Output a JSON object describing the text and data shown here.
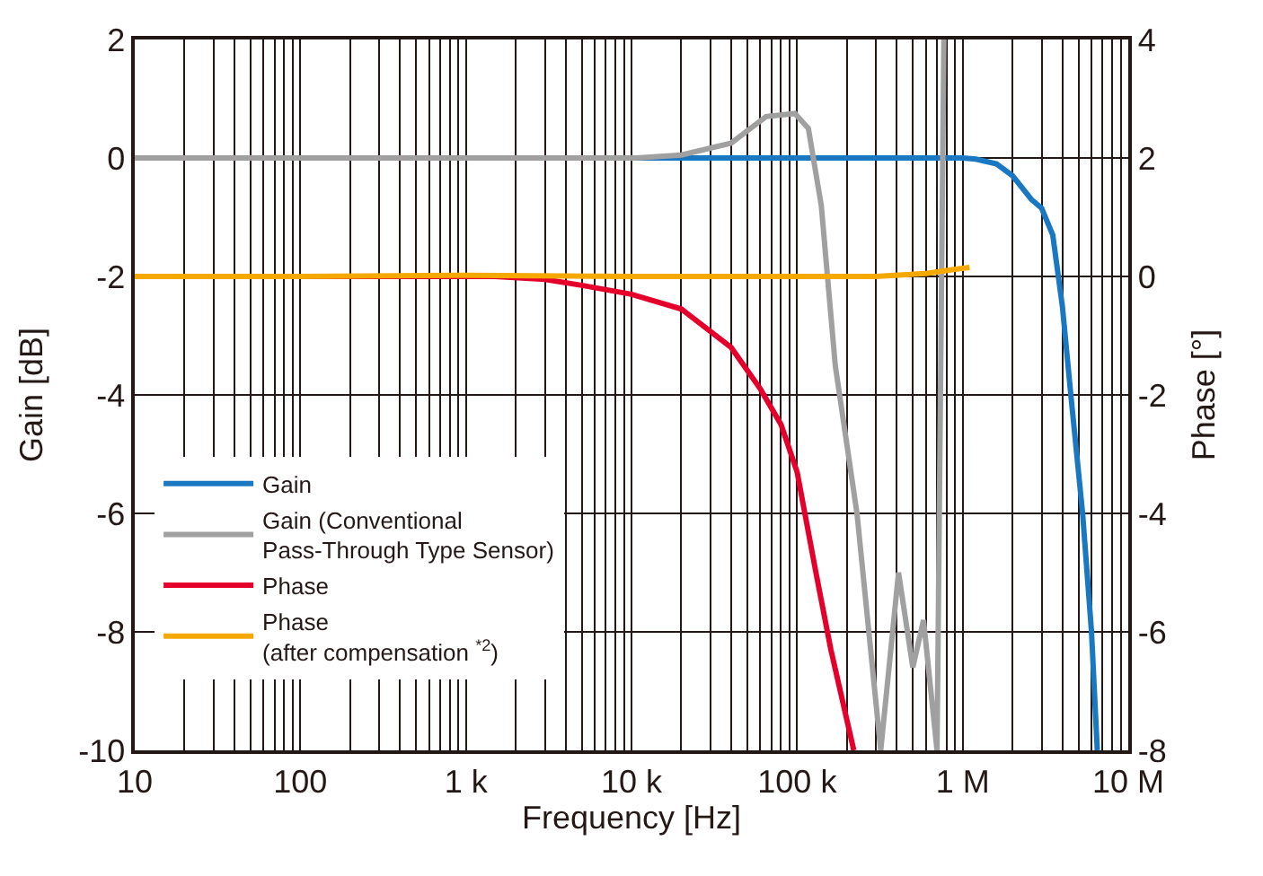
{
  "chart_data": {
    "type": "line",
    "xlabel": "Frequency [Hz]",
    "ylabel": "Gain [dB]",
    "y2label": "Phase [°]",
    "log": "x",
    "grid": true,
    "legend": "bottom left",
    "marker": "none",
    "line_style": "solid",
    "xlim": [
      10,
      10000000
    ],
    "xticks": [
      10,
      100,
      {
        "value": 1000,
        "label": "1 k"
      },
      {
        "value": 10000,
        "label": "10 k"
      },
      {
        "value": 100000,
        "label": "100 k"
      },
      {
        "value": 1000000,
        "label": "1 M"
      },
      {
        "value": 10000000,
        "label": "10 M"
      }
    ],
    "ylim": [
      -10,
      2
    ],
    "yticks": [
      -10,
      -8,
      -6,
      -4,
      -2,
      0,
      2
    ],
    "y2lim": [
      -8,
      4
    ],
    "y2ticks": [
      -8,
      -6,
      -4,
      -2,
      0,
      2,
      4
    ],
    "series": [
      {
        "name": "Gain",
        "color": "#1a78c2",
        "x": [
          10,
          1000,
          100000,
          1000000,
          1200000,
          1600000,
          2000000,
          2600000,
          3000000,
          3500000,
          4000000,
          4500000,
          5300000,
          6000000,
          6500000
        ],
        "values": [
          0,
          0,
          0,
          0,
          -0.02,
          -0.1,
          -0.3,
          -0.7,
          -0.85,
          -1.3,
          -2.5,
          -4,
          -6,
          -8,
          -10
        ]
      },
      {
        "name": "Gain (Conventional\nPass-Through Type Sensor)",
        "color": "#a0a0a0",
        "x": [
          10,
          1000,
          10700,
          20000,
          40000,
          65000,
          97000,
          117000,
          140000,
          170000,
          230000,
          320000,
          410000,
          500000,
          580000,
          700000,
          770000
        ],
        "values": [
          0,
          0,
          0,
          0.05,
          0.25,
          0.7,
          0.75,
          0.5,
          -0.8,
          -3.5,
          -6,
          -10,
          -7,
          -8.6,
          -7.8,
          -10,
          2
        ]
      },
      {
        "name": "Phase",
        "color": "#e4002b",
        "axis": "y2",
        "x": [
          10,
          1000,
          1500,
          3000,
          5000,
          10000,
          20000,
          40000,
          60000,
          80000,
          100000,
          130000,
          160000,
          220000
        ],
        "values": [
          0,
          0,
          0,
          -0.05,
          -0.15,
          -0.3,
          -0.55,
          -1.2,
          -1.9,
          -2.5,
          -3.3,
          -5,
          -6.3,
          -8
        ]
      },
      {
        "name": "Phase\n(after compensation $^{*2}$)",
        "color": "#f5a800",
        "axis": "y2",
        "x": [
          10,
          100,
          1000,
          10000,
          100000,
          300000,
          600000,
          900000,
          1100000
        ],
        "values": [
          0,
          0,
          0.02,
          0,
          0,
          0,
          0.05,
          0.12,
          0.15
        ]
      }
    ]
  }
}
